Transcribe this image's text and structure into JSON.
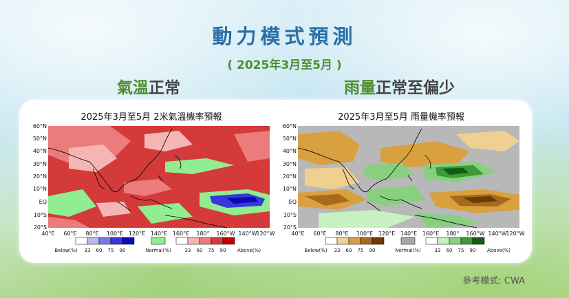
{
  "header": {
    "title": "動力模式預測",
    "subtitle": "( 2025年3月至5月 )"
  },
  "temperature": {
    "heading_highlight": "氣溫",
    "heading_rest": "正常",
    "map_title": "2025年3月至5月 2米氣溫機率預報",
    "legend": {
      "below_label": "Below(%)",
      "normal_label": "Normal(%)",
      "above_label": "Above(%)",
      "ticks": [
        "33",
        "60",
        "75",
        "90"
      ],
      "below_colors": [
        "#ffffff",
        "#b8b8f0",
        "#7878e8",
        "#3838d8",
        "#0a0ab8"
      ],
      "normal_color": "#90ee90",
      "above_colors": [
        "#ffffff",
        "#f5b5b5",
        "#ec7c7c",
        "#dc3838",
        "#c00000"
      ]
    }
  },
  "rainfall": {
    "heading_highlight": "雨量",
    "heading_rest": "正常至偏少",
    "map_title": "2025年3月至5月 雨量機率預報",
    "legend": {
      "below_label": "Below(%)",
      "normal_label": "Normal(%)",
      "above_label": "Above(%)",
      "ticks": [
        "33",
        "60",
        "75",
        "90"
      ],
      "below_colors": [
        "#ffffff",
        "#f0d090",
        "#d9a040",
        "#a86a18",
        "#6b3a08"
      ],
      "normal_color": "#a8a8a8",
      "above_colors": [
        "#ffffff",
        "#c8f0c0",
        "#88d080",
        "#3c9a38",
        "#145a14"
      ]
    }
  },
  "axes": {
    "lat_labels": [
      "60°N",
      "50°N",
      "40°N",
      "30°N",
      "20°N",
      "10°N",
      "EQ",
      "10°S",
      "20°S"
    ],
    "lon_labels": [
      "40°E",
      "60°E",
      "80°E",
      "100°E",
      "120°E",
      "140°E",
      "160°E",
      "180°",
      "160°W",
      "140°W",
      "120°W"
    ]
  },
  "footer": {
    "credit": "參考模式: CWA"
  }
}
